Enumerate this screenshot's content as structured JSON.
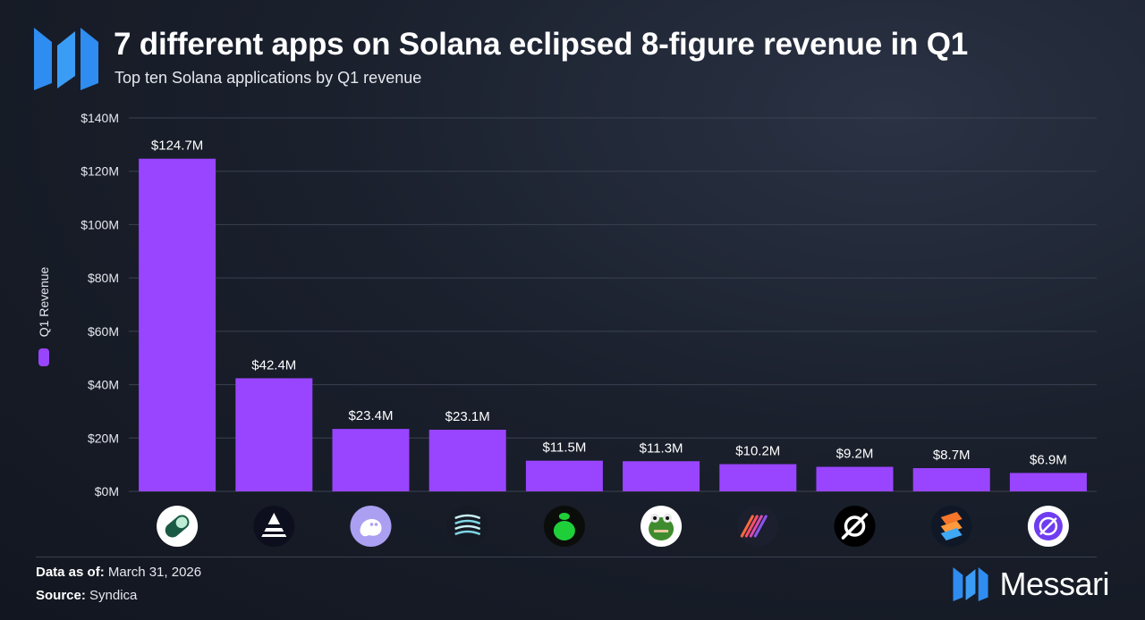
{
  "header": {
    "title": "7 different apps on Solana eclipsed 8-figure revenue in Q1",
    "subtitle": "Top ten Solana applications by Q1 revenue"
  },
  "legend": {
    "label": "Q1 Revenue",
    "color": "#9945ff"
  },
  "footer": {
    "data_as_of_label": "Data as of:",
    "data_as_of_value": "March 31, 2026",
    "source_label": "Source:",
    "source_value": "Syndica"
  },
  "brand": {
    "name": "Messari"
  },
  "colors": {
    "bar": "#9945ff",
    "grid": "#3a4150",
    "background": "#1a202c"
  },
  "chart_data": {
    "type": "bar",
    "title": "7 different apps on Solana eclipsed 8-figure revenue in Q1",
    "subtitle": "Top ten Solana applications by Q1 revenue",
    "xlabel": "",
    "ylabel": "Q1 Revenue",
    "ylim": [
      0,
      140
    ],
    "yticks": [
      0,
      20,
      40,
      60,
      80,
      100,
      120,
      140
    ],
    "ytick_labels": [
      "$0M",
      "$20M",
      "$40M",
      "$60M",
      "$80M",
      "$100M",
      "$120M",
      "$140M"
    ],
    "grid": true,
    "legend_position": "left",
    "categories_icons": [
      "pill-icon",
      "triangle-stack-icon",
      "ghost-icon",
      "striped-sphere-icon",
      "money-bag-icon",
      "frog-icon",
      "diagonal-stripes-icon",
      "ring-slash-icon",
      "stacked-layers-icon",
      "helix-icon"
    ],
    "values": [
      124.7,
      42.4,
      23.4,
      23.1,
      11.5,
      11.3,
      10.2,
      9.2,
      8.7,
      6.9
    ],
    "value_labels": [
      "$124.7M",
      "$42.4M",
      "$23.4M",
      "$23.1M",
      "$11.5M",
      "$11.3M",
      "$10.2M",
      "$9.2M",
      "$8.7M",
      "$6.9M"
    ]
  }
}
